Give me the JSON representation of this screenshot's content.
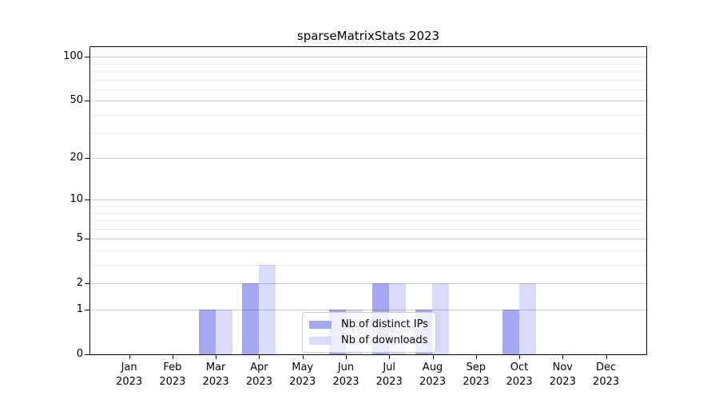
{
  "chart_data": {
    "type": "bar",
    "title": "sparseMatrixStats 2023",
    "year_label": "2023",
    "categories": [
      "Jan",
      "Feb",
      "Mar",
      "Apr",
      "May",
      "Jun",
      "Jul",
      "Aug",
      "Sep",
      "Oct",
      "Nov",
      "Dec"
    ],
    "series": [
      {
        "name": "Nb of distinct IPs",
        "color": "#a6a6f2",
        "values": [
          0,
          0,
          1,
          2,
          0,
          1,
          2,
          1,
          0,
          1,
          0,
          0
        ]
      },
      {
        "name": "Nb of downloads",
        "color": "#d9daf9",
        "values": [
          0,
          0,
          1,
          3,
          0,
          1,
          2,
          2,
          0,
          2,
          0,
          0
        ]
      }
    ],
    "y_scale": "log1p",
    "ylim": [
      0,
      116.4
    ],
    "y_major_ticks": [
      0,
      1,
      2,
      5,
      10,
      20,
      50,
      100
    ],
    "y_minor_gridlines": [
      3,
      4,
      6,
      7,
      8,
      9,
      30,
      40,
      60,
      70,
      80,
      90
    ],
    "grid": true,
    "legend_position": "inside lower center",
    "colors": {
      "axis": "#000000",
      "major_grid": "#cccccc",
      "minor_grid": "#ebebeb",
      "background": "#ffffff"
    }
  }
}
